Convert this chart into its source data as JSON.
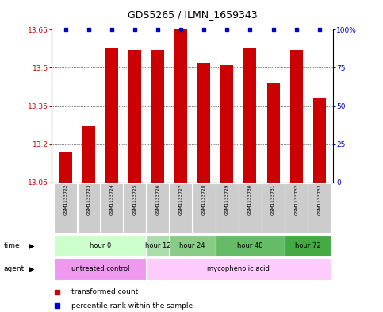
{
  "title": "GDS5265 / ILMN_1659343",
  "samples": [
    "GSM1133722",
    "GSM1133723",
    "GSM1133724",
    "GSM1133725",
    "GSM1133726",
    "GSM1133727",
    "GSM1133728",
    "GSM1133729",
    "GSM1133730",
    "GSM1133731",
    "GSM1133732",
    "GSM1133733"
  ],
  "transformed_count": [
    13.17,
    13.27,
    13.58,
    13.57,
    13.57,
    13.65,
    13.52,
    13.51,
    13.58,
    13.44,
    13.57,
    13.38
  ],
  "ylim_left": [
    13.05,
    13.65
  ],
  "ylim_right": [
    0,
    100
  ],
  "yticks_left": [
    13.05,
    13.2,
    13.35,
    13.5,
    13.65
  ],
  "yticks_right": [
    0,
    25,
    50,
    75,
    100
  ],
  "ytick_labels_left": [
    "13.05",
    "13.2",
    "13.35",
    "13.5",
    "13.65"
  ],
  "ytick_labels_right": [
    "0",
    "25",
    "50",
    "75",
    "100%"
  ],
  "bar_color": "#cc0000",
  "dot_color": "#0000cc",
  "time_groups": [
    {
      "label": "hour 0",
      "start": 0,
      "end": 3,
      "color": "#ccffcc"
    },
    {
      "label": "hour 12",
      "start": 4,
      "end": 4,
      "color": "#aaddaa"
    },
    {
      "label": "hour 24",
      "start": 5,
      "end": 6,
      "color": "#88cc88"
    },
    {
      "label": "hour 48",
      "start": 7,
      "end": 9,
      "color": "#66bb66"
    },
    {
      "label": "hour 72",
      "start": 10,
      "end": 11,
      "color": "#44aa44"
    }
  ],
  "agent_groups": [
    {
      "label": "untreated control",
      "start": 0,
      "end": 3,
      "color": "#ee99ee"
    },
    {
      "label": "mycophenolic acid",
      "start": 4,
      "end": 11,
      "color": "#ffccff"
    }
  ],
  "background_color": "#ffffff",
  "sample_box_color": "#cccccc",
  "grid_yticks": [
    13.2,
    13.35,
    13.5
  ]
}
